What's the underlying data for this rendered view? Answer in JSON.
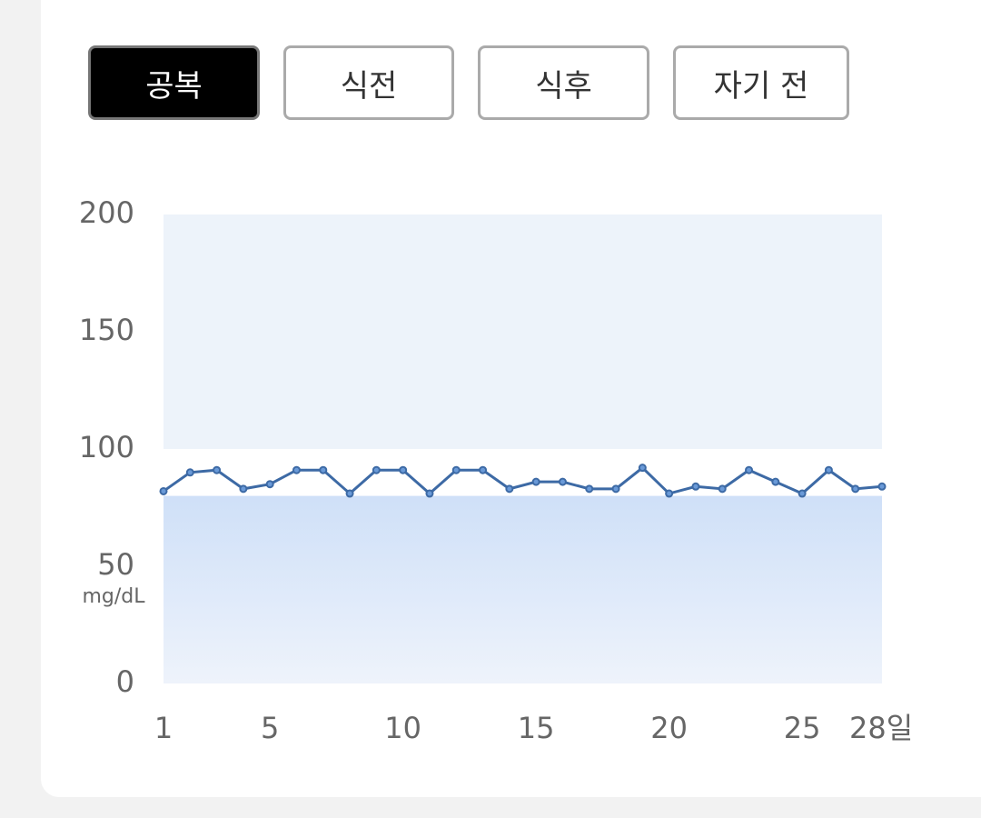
{
  "tabs": [
    "공복",
    "식전",
    "식후",
    "자기 전"
  ],
  "selected_tab": 0,
  "chart_data": {
    "type": "line",
    "y_unit": "mg/dL",
    "x": [
      1,
      2,
      3,
      4,
      5,
      6,
      7,
      8,
      9,
      10,
      11,
      12,
      13,
      14,
      15,
      16,
      17,
      18,
      19,
      20,
      21,
      22,
      23,
      24,
      25,
      26,
      27,
      28
    ],
    "series": [
      {
        "color": "#3d6aa5",
        "values": [
          82,
          90,
          91,
          83,
          85,
          91,
          91,
          81,
          91,
          91,
          81,
          91,
          91,
          83,
          86,
          86,
          83,
          83,
          92,
          81,
          84,
          83,
          91,
          86,
          81,
          91,
          83,
          84
        ]
      }
    ],
    "xlim": [
      1,
      28
    ],
    "xticks": [
      1,
      5,
      10,
      15,
      20,
      25,
      {
        "value": 28,
        "label": "28일"
      }
    ],
    "ylim": [
      0,
      200
    ],
    "yticks": [
      0,
      50,
      100,
      150,
      200
    ],
    "bands": [
      {
        "range": [
          100,
          200
        ],
        "color": "#edf3fa"
      },
      {
        "range": [
          0,
          80
        ],
        "color": "#cfe0f8",
        "gradient_end": "#eef3fb"
      }
    ]
  }
}
